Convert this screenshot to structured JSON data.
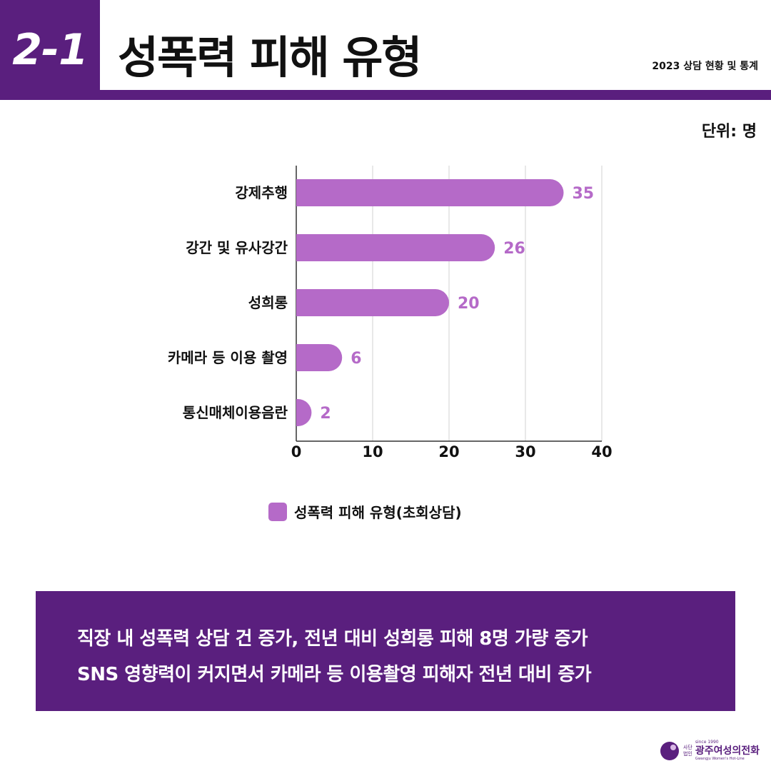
{
  "header": {
    "section_number": "2-1",
    "title": "성폭력 피해 유형",
    "subtitle": "2023 상담 현황 및 통계"
  },
  "unit_label": "단위: 명",
  "chart_data": {
    "type": "bar",
    "orientation": "horizontal",
    "categories": [
      "강제추행",
      "강간 및 유사강간",
      "성희롱",
      "카메라 등 이용 촬영",
      "통신매체이용음란"
    ],
    "series": [
      {
        "name": "성폭력 피해 유형(초회상담)",
        "values": [
          35,
          26,
          20,
          6,
          2
        ]
      }
    ],
    "xlim": [
      0,
      40
    ],
    "xticks": [
      0,
      10,
      20,
      30,
      40
    ],
    "grid": true,
    "legend_position": "bottom",
    "bar_color": "#b56ac8",
    "value_label_color": "#b56ac8"
  },
  "legend": {
    "label": "성폭력 피해 유형(초회상담)"
  },
  "summary": {
    "lines": [
      "직장 내 성폭력 상담 건 증가, 전년 대비 성희롱 피해 8명 가량 증가",
      "SNS 영향력이 커지면서 카메라 등 이용촬영 피해자 전년 대비 증가"
    ]
  },
  "logo": {
    "since": "since 1990",
    "prefix_line1": "사단",
    "prefix_line2": "법인",
    "name": "광주여성의전화",
    "english": "Gwangju Women's Hot-Line"
  },
  "colors": {
    "brand_purple": "#5a1f7e",
    "bar": "#b56ac8"
  }
}
